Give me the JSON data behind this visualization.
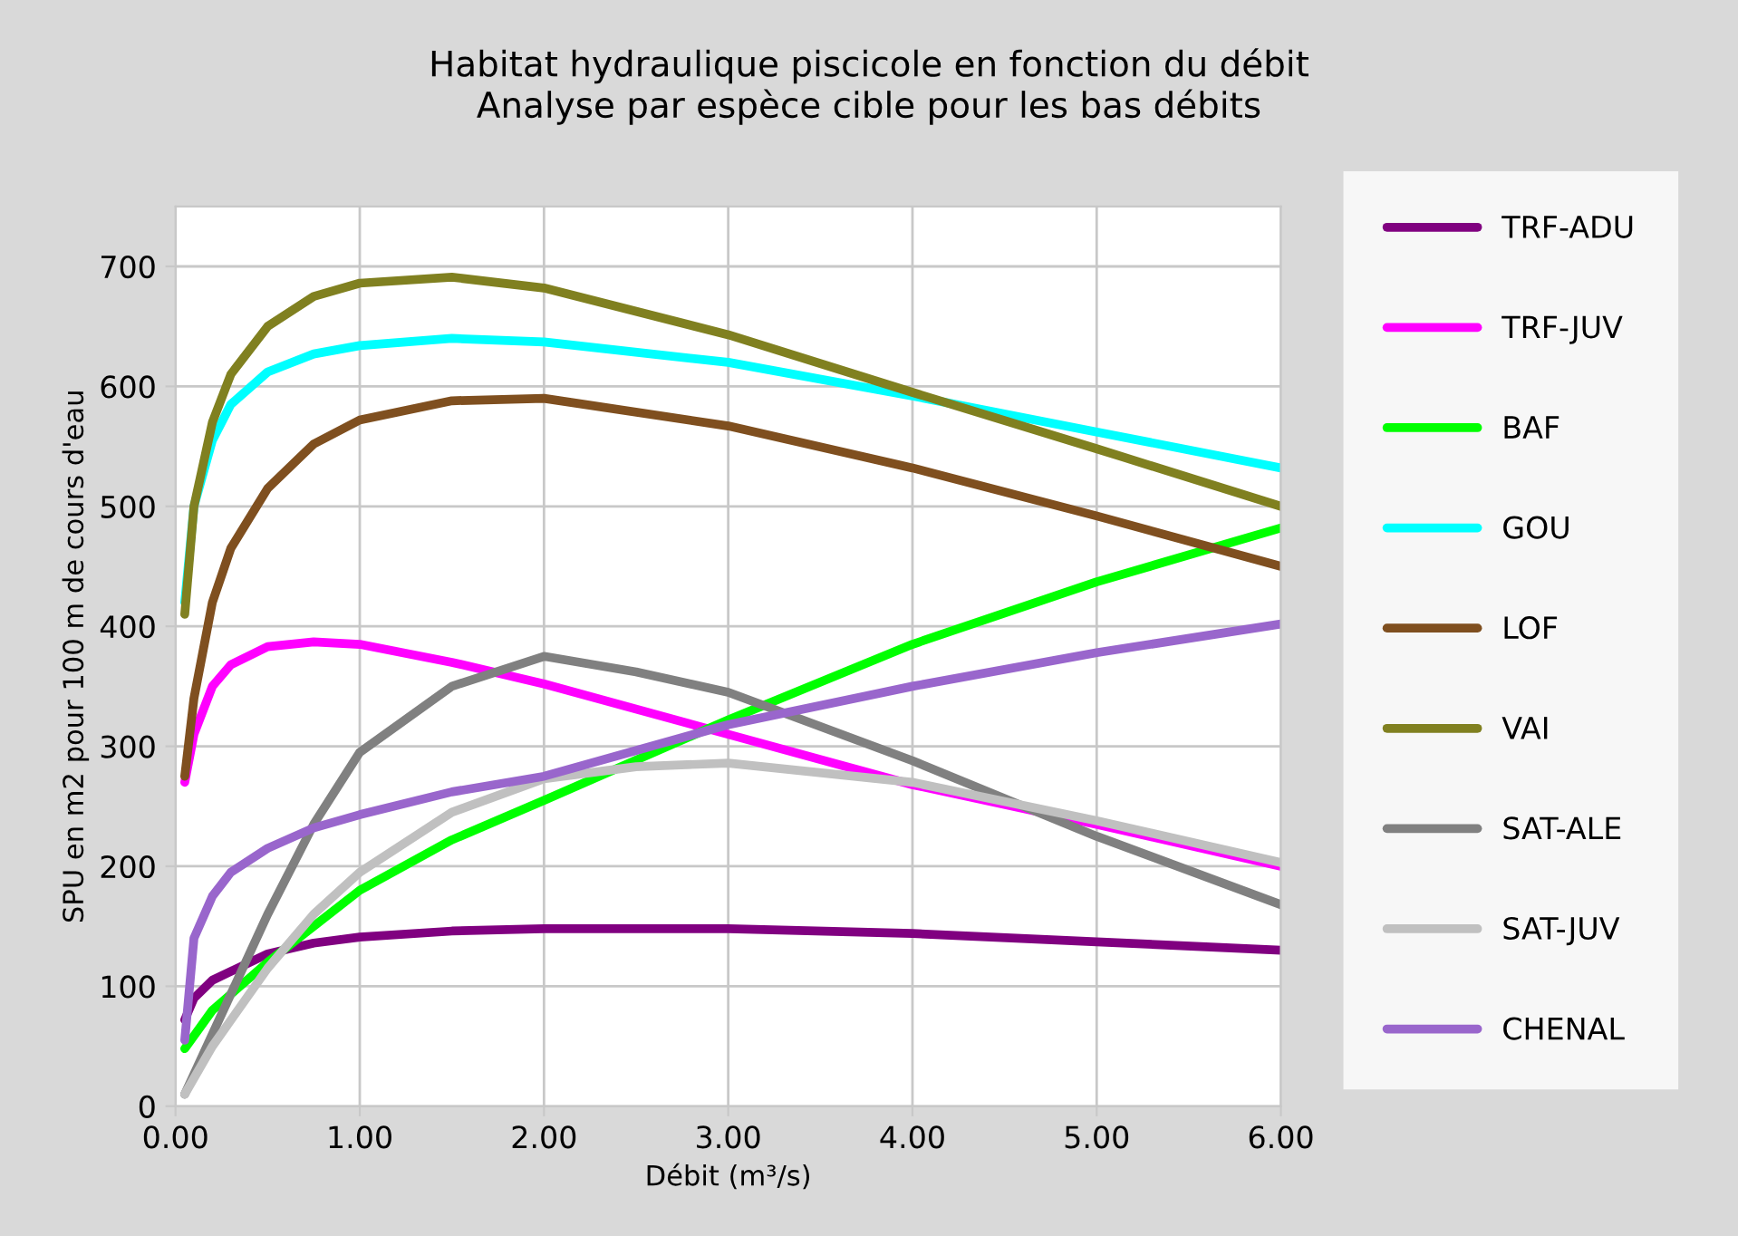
{
  "chart_data": {
    "type": "line",
    "title": "Habitat hydraulique piscicole en fonction du débit\nAnalyse par espèce cible pour les bas débits",
    "xlabel": "Débit (m³/s)",
    "ylabel": "SPU en m2 pour 100 m de cours d'eau",
    "xlim": [
      0,
      6
    ],
    "xticks": [
      {
        "value": 0,
        "label": "0.00"
      },
      {
        "value": 1,
        "label": "1.00"
      },
      {
        "value": 2,
        "label": "2.00"
      },
      {
        "value": 3,
        "label": "3.00"
      },
      {
        "value": 4,
        "label": "4.00"
      },
      {
        "value": 5,
        "label": "5.00"
      },
      {
        "value": 6,
        "label": "6.00"
      }
    ],
    "ylim": [
      0,
      750
    ],
    "yticks": [
      0,
      100,
      200,
      300,
      400,
      500,
      600,
      700
    ],
    "grid": true,
    "legend": "right",
    "series": [
      {
        "name": "TRF-ADU",
        "color": "#800080",
        "x": [
          0.05,
          0.1,
          0.2,
          0.5,
          0.75,
          1,
          1.5,
          2,
          3,
          4,
          5,
          6
        ],
        "values": [
          72,
          90,
          105,
          127,
          136,
          141,
          146,
          148,
          148,
          144,
          137,
          130
        ]
      },
      {
        "name": "TRF-JUV",
        "color": "#ff00ff",
        "x": [
          0.05,
          0.1,
          0.2,
          0.3,
          0.5,
          0.75,
          1,
          1.5,
          2,
          3,
          4,
          5,
          6
        ],
        "values": [
          270,
          310,
          350,
          368,
          383,
          387,
          385,
          370,
          352,
          310,
          268,
          235,
          200
        ]
      },
      {
        "name": "BAF",
        "color": "#00ff00",
        "x": [
          0.05,
          0.2,
          0.5,
          1,
          1.5,
          2,
          3,
          4,
          5,
          6
        ],
        "values": [
          48,
          80,
          120,
          180,
          222,
          255,
          322,
          385,
          437,
          482
        ]
      },
      {
        "name": "GOU",
        "color": "#00ffff",
        "x": [
          0.05,
          0.1,
          0.2,
          0.3,
          0.5,
          0.75,
          1,
          1.5,
          2,
          3,
          4,
          5,
          6
        ],
        "values": [
          420,
          500,
          555,
          585,
          612,
          627,
          634,
          640,
          637,
          620,
          592,
          562,
          532
        ]
      },
      {
        "name": "LOF",
        "color": "#7f4f1f",
        "x": [
          0.05,
          0.1,
          0.2,
          0.3,
          0.5,
          0.75,
          1,
          1.5,
          2,
          3,
          4,
          5,
          6
        ],
        "values": [
          275,
          340,
          420,
          465,
          515,
          552,
          572,
          588,
          590,
          567,
          532,
          492,
          450
        ]
      },
      {
        "name": "VAI",
        "color": "#808020",
        "x": [
          0.05,
          0.1,
          0.2,
          0.3,
          0.5,
          0.75,
          1,
          1.5,
          2,
          3,
          4,
          5,
          6
        ],
        "values": [
          410,
          500,
          570,
          610,
          650,
          675,
          686,
          691,
          682,
          643,
          595,
          548,
          500
        ]
      },
      {
        "name": "SAT-ALE",
        "color": "#808080",
        "x": [
          0.05,
          0.2,
          0.5,
          0.75,
          1,
          1.5,
          2,
          2.5,
          3,
          4,
          5,
          6
        ],
        "values": [
          10,
          60,
          160,
          235,
          295,
          350,
          375,
          362,
          345,
          288,
          225,
          168
        ]
      },
      {
        "name": "SAT-JUV",
        "color": "#c0c0c0",
        "x": [
          0.05,
          0.2,
          0.5,
          0.75,
          1,
          1.5,
          2,
          2.5,
          3,
          4,
          5,
          6
        ],
        "values": [
          10,
          50,
          115,
          160,
          195,
          245,
          273,
          283,
          286,
          270,
          238,
          203
        ]
      },
      {
        "name": "CHENAL",
        "color": "#9966cc",
        "x": [
          0.05,
          0.1,
          0.2,
          0.3,
          0.5,
          0.75,
          1,
          1.5,
          2,
          3,
          4,
          5,
          6
        ],
        "values": [
          55,
          140,
          175,
          195,
          215,
          232,
          243,
          262,
          275,
          318,
          350,
          378,
          402
        ]
      }
    ]
  }
}
